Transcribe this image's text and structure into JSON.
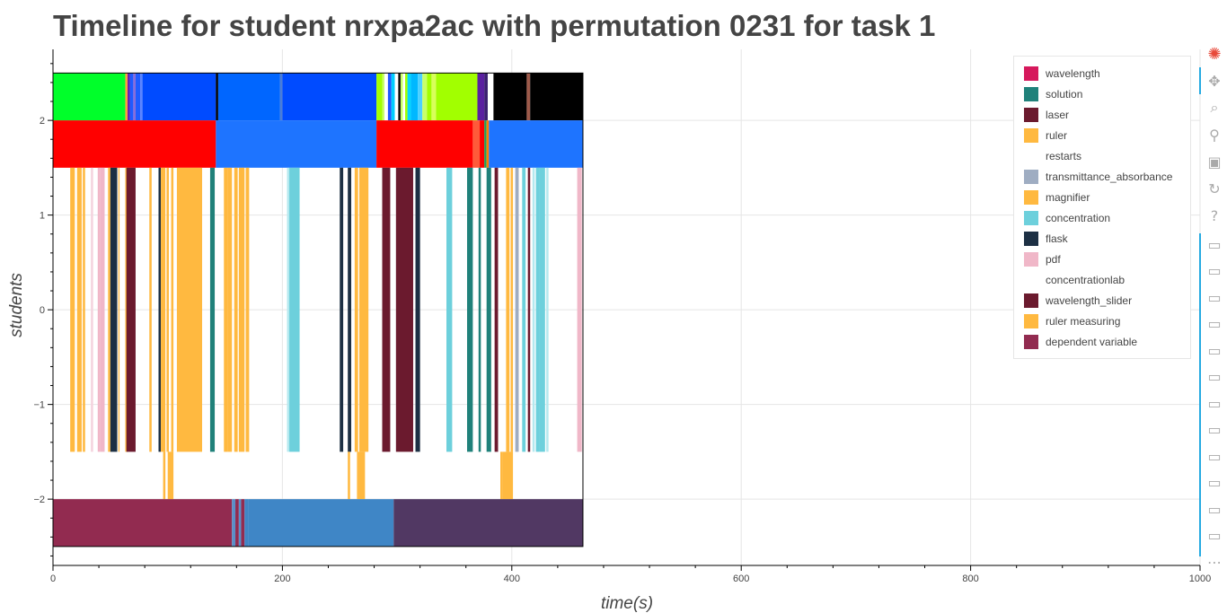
{
  "chart_data": {
    "type": "timeline",
    "title": "Timeline for student nrxpa2ac with permutation 0231 for task 1",
    "xlabel": "time(s)",
    "ylabel": "students",
    "xlim": [
      0,
      1000
    ],
    "ylim": [
      -2.7,
      2.75
    ],
    "x_ticks": [
      0,
      200,
      400,
      600,
      800,
      1000
    ],
    "y_ticks": [
      {
        "value": 2,
        "label": "2"
      },
      {
        "value": 1,
        "label": "1"
      },
      {
        "value": 0,
        "label": "0"
      },
      {
        "value": -1,
        "label": "−1"
      },
      {
        "value": -2,
        "label": "−2"
      }
    ],
    "grid": true,
    "legend_position": "top-right",
    "legend": [
      {
        "label": "wavelength",
        "color": "#d6185c"
      },
      {
        "label": "solution",
        "color": "#20817a"
      },
      {
        "label": "laser",
        "color": "#6b1a2e"
      },
      {
        "label": "ruler",
        "color": "#ffb940"
      },
      {
        "label": "restarts",
        "color": "#ffffff"
      },
      {
        "label": "transmittance_absorbance",
        "color": "#9fadc2"
      },
      {
        "label": "magnifier",
        "color": "#ffb940"
      },
      {
        "label": "concentration",
        "color": "#6dd0dc"
      },
      {
        "label": "flask",
        "color": "#1d3044"
      },
      {
        "label": "pdf",
        "color": "#f0b7c8"
      },
      {
        "label": "concentrationlab",
        "color": "#ffffff"
      },
      {
        "label": "wavelength_slider",
        "color": "#6b1a2e"
      },
      {
        "label": "ruler measuring",
        "color": "#ffb940"
      },
      {
        "label": "dependent variable",
        "color": "#922b50"
      }
    ],
    "rows": [
      {
        "y0": 2.0,
        "y1": 2.5,
        "segments": [
          [
            0,
            63,
            "#00ff2a"
          ],
          [
            63,
            65,
            "#ff9e3d"
          ],
          [
            65,
            67,
            "#6a1fb0"
          ],
          [
            67,
            70,
            "#1f5bff"
          ],
          [
            70,
            72,
            "#8a6ad8"
          ],
          [
            72,
            76,
            "#1f5bff"
          ],
          [
            76,
            78,
            "#5a84ff"
          ],
          [
            78,
            142,
            "#004bff"
          ],
          [
            142,
            144,
            "#000000"
          ],
          [
            144,
            198,
            "#0066ff"
          ],
          [
            198,
            200,
            "#4c7cd6"
          ],
          [
            200,
            282,
            "#004bff"
          ],
          [
            282,
            287,
            "#a2ff00"
          ],
          [
            287,
            289,
            "#c8ff6a"
          ],
          [
            289,
            292,
            "#ffffff"
          ],
          [
            292,
            295,
            "#1f5bff"
          ],
          [
            295,
            298,
            "#00cfff"
          ],
          [
            298,
            301,
            "#ffffff"
          ],
          [
            301,
            303,
            "#0a0a0a"
          ],
          [
            303,
            305,
            "#c8ff6a"
          ],
          [
            305,
            307,
            "#ffffff"
          ],
          [
            307,
            309,
            "#a2ff00"
          ],
          [
            309,
            312,
            "#00d6ff"
          ],
          [
            312,
            318,
            "#00b8ff"
          ],
          [
            318,
            322,
            "#4cd0ff"
          ],
          [
            322,
            326,
            "#c8ff6a"
          ],
          [
            326,
            330,
            "#a2ff00"
          ],
          [
            330,
            334,
            "#d8ff5a"
          ],
          [
            334,
            370,
            "#a2ff00"
          ],
          [
            370,
            376,
            "#5a1fa0"
          ],
          [
            376,
            379,
            "#3a2070"
          ],
          [
            379,
            384,
            "#ffffff"
          ],
          [
            384,
            413,
            "#000000"
          ],
          [
            413,
            416,
            "#9e5a4a"
          ],
          [
            416,
            462,
            "#000000"
          ]
        ]
      },
      {
        "y0": 1.5,
        "y1": 2.0,
        "segments": [
          [
            0,
            142,
            "#ff0000"
          ],
          [
            142,
            282,
            "#1e74ff"
          ],
          [
            282,
            366,
            "#ff0000"
          ],
          [
            366,
            372,
            "#ff5a3a"
          ],
          [
            372,
            376,
            "#ff0000"
          ],
          [
            376,
            378,
            "#1e9f55"
          ],
          [
            378,
            380,
            "#ff7f00"
          ],
          [
            380,
            462,
            "#1e74ff"
          ]
        ]
      },
      {
        "y0": -1.5,
        "y1": 1.5,
        "segments": [
          [
            15,
            19,
            "#ffb940"
          ],
          [
            21,
            25,
            "#ffb940"
          ],
          [
            26,
            28,
            "#ffb940"
          ],
          [
            33,
            35,
            "#f4d3de"
          ],
          [
            39,
            41,
            "#f0b7c8"
          ],
          [
            41,
            45,
            "#f0b7c8"
          ],
          [
            48,
            50,
            "#ffb940"
          ],
          [
            50,
            56,
            "#1d3044"
          ],
          [
            57,
            58,
            "#ffb940"
          ],
          [
            63,
            65,
            "#ffb940"
          ],
          [
            64,
            72,
            "#6b1a2e"
          ],
          [
            84,
            86,
            "#ffb940"
          ],
          [
            92,
            94,
            "#1d3044"
          ],
          [
            94,
            98,
            "#ffb940"
          ],
          [
            99,
            101,
            "#ffb940"
          ],
          [
            103,
            105,
            "#ffb940"
          ],
          [
            108,
            130,
            "#ffb940"
          ],
          [
            137,
            141,
            "#20817a"
          ],
          [
            149,
            152,
            "#ffb940"
          ],
          [
            152,
            156,
            "#ffb940"
          ],
          [
            158,
            161,
            "#ffb940"
          ],
          [
            162,
            167,
            "#ffb940"
          ],
          [
            168,
            171,
            "#ffb940"
          ],
          [
            204,
            206,
            "#b5e9ef"
          ],
          [
            206,
            215,
            "#6dd0dc"
          ],
          [
            250,
            253,
            "#1d3044"
          ],
          [
            257,
            260,
            "#1d3044"
          ],
          [
            263,
            266,
            "#ffb940"
          ],
          [
            267,
            275,
            "#ffb940"
          ],
          [
            287,
            294,
            "#6b1a2e"
          ],
          [
            299,
            314,
            "#6b1a2e"
          ],
          [
            316,
            320,
            "#1d3044"
          ],
          [
            343,
            348,
            "#6dd0dc"
          ],
          [
            361,
            366,
            "#20817a"
          ],
          [
            371,
            373,
            "#20817a"
          ],
          [
            378,
            382,
            "#20817a"
          ],
          [
            385,
            388,
            "#6b1a2e"
          ],
          [
            395,
            398,
            "#ffb940"
          ],
          [
            399,
            401,
            "#ffb940"
          ],
          [
            403,
            406,
            "#9fadc2"
          ],
          [
            409,
            412,
            "#6dd0dc"
          ],
          [
            414,
            416,
            "#6b1a2e"
          ],
          [
            418,
            420,
            "#b5e9ef"
          ],
          [
            421,
            424,
            "#6dd0dc"
          ],
          [
            424,
            429,
            "#6dd0dc"
          ],
          [
            430,
            432,
            "#b5e9ef"
          ],
          [
            457,
            461,
            "#f0b7c8"
          ]
        ]
      },
      {
        "y0": -2.0,
        "y1": -1.5,
        "segments": [
          [
            96,
            98,
            "#ffb940"
          ],
          [
            100,
            105,
            "#ffb940"
          ],
          [
            257,
            259,
            "#ffb940"
          ],
          [
            265,
            267,
            "#ffb940"
          ],
          [
            267,
            272,
            "#ffb940"
          ],
          [
            390,
            392,
            "#ffb940"
          ],
          [
            392,
            401,
            "#ffb940"
          ]
        ]
      },
      {
        "y0": -2.5,
        "y1": -2.0,
        "segments": [
          [
            0,
            156,
            "#922b50"
          ],
          [
            156,
            159,
            "#5a8fc9"
          ],
          [
            159,
            162,
            "#922b50"
          ],
          [
            162,
            164,
            "#5a8fc9"
          ],
          [
            164,
            167,
            "#922b50"
          ],
          [
            167,
            170,
            "#3f86c6"
          ],
          [
            170,
            297,
            "#3f86c6"
          ],
          [
            297,
            462,
            "#513863"
          ]
        ]
      }
    ]
  },
  "toolbar": {
    "tools": [
      {
        "name": "bokeh-logo-icon",
        "glyph": "✺"
      },
      {
        "name": "pan-icon",
        "glyph": "✥"
      },
      {
        "name": "box-zoom-icon",
        "glyph": "⌕"
      },
      {
        "name": "wheel-zoom-icon",
        "glyph": "⚲"
      },
      {
        "name": "save-icon",
        "glyph": "▣"
      },
      {
        "name": "reset-icon",
        "glyph": "↻"
      },
      {
        "name": "help-icon",
        "glyph": "?"
      },
      {
        "name": "hover-icon",
        "glyph": "▭"
      },
      {
        "name": "hover-icon",
        "glyph": "▭"
      },
      {
        "name": "hover-icon",
        "glyph": "▭"
      },
      {
        "name": "hover-icon",
        "glyph": "▭"
      },
      {
        "name": "hover-icon",
        "glyph": "▭"
      },
      {
        "name": "hover-icon",
        "glyph": "▭"
      },
      {
        "name": "hover-icon",
        "glyph": "▭"
      },
      {
        "name": "hover-icon",
        "glyph": "▭"
      },
      {
        "name": "hover-icon",
        "glyph": "▭"
      },
      {
        "name": "hover-icon",
        "glyph": "▭"
      },
      {
        "name": "hover-icon",
        "glyph": "▭"
      },
      {
        "name": "hover-icon",
        "glyph": "▭"
      },
      {
        "name": "more-icon",
        "glyph": "⋯"
      }
    ]
  }
}
